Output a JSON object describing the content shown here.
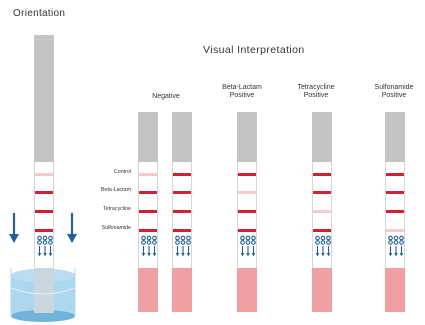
{
  "titles": {
    "orientation": "Orientation",
    "visual_interpretation": "Visual Interpretation"
  },
  "columns": [
    {
      "line1": "Negative",
      "line2": ""
    },
    {
      "line1": "Beta-Lactam",
      "line2": "Positive"
    },
    {
      "line1": "Tetracycline",
      "line2": "Positive"
    },
    {
      "line1": "Sulfonamide",
      "line2": "Positive"
    }
  ],
  "rows": [
    "Control",
    "Beta-Lactam",
    "Tetracycline",
    "Sulfonamide"
  ],
  "colors": {
    "band_strong": "#d42033",
    "band_faint": "#f6cbd0",
    "sample_pink": "#f0a0a3",
    "strip_gray": "#c4c4c4",
    "arrow_blue": "#1f5fa0",
    "water": "#8fc6e6"
  },
  "strips": [
    {
      "id": "orientation",
      "bands": [
        "faint",
        "strong",
        "strong",
        "strong"
      ]
    },
    {
      "id": "negative-1",
      "bands": [
        "faint",
        "strong",
        "strong",
        "strong"
      ]
    },
    {
      "id": "negative-2",
      "bands": [
        "strong",
        "strong",
        "strong",
        "strong"
      ]
    },
    {
      "id": "beta-lactam-positive",
      "bands": [
        "strong",
        "faint",
        "strong",
        "strong"
      ]
    },
    {
      "id": "tetracycline-positive",
      "bands": [
        "strong",
        "strong",
        "faint",
        "strong"
      ]
    },
    {
      "id": "sulfonamide-positive",
      "bands": [
        "strong",
        "strong",
        "strong",
        "faint"
      ]
    }
  ]
}
